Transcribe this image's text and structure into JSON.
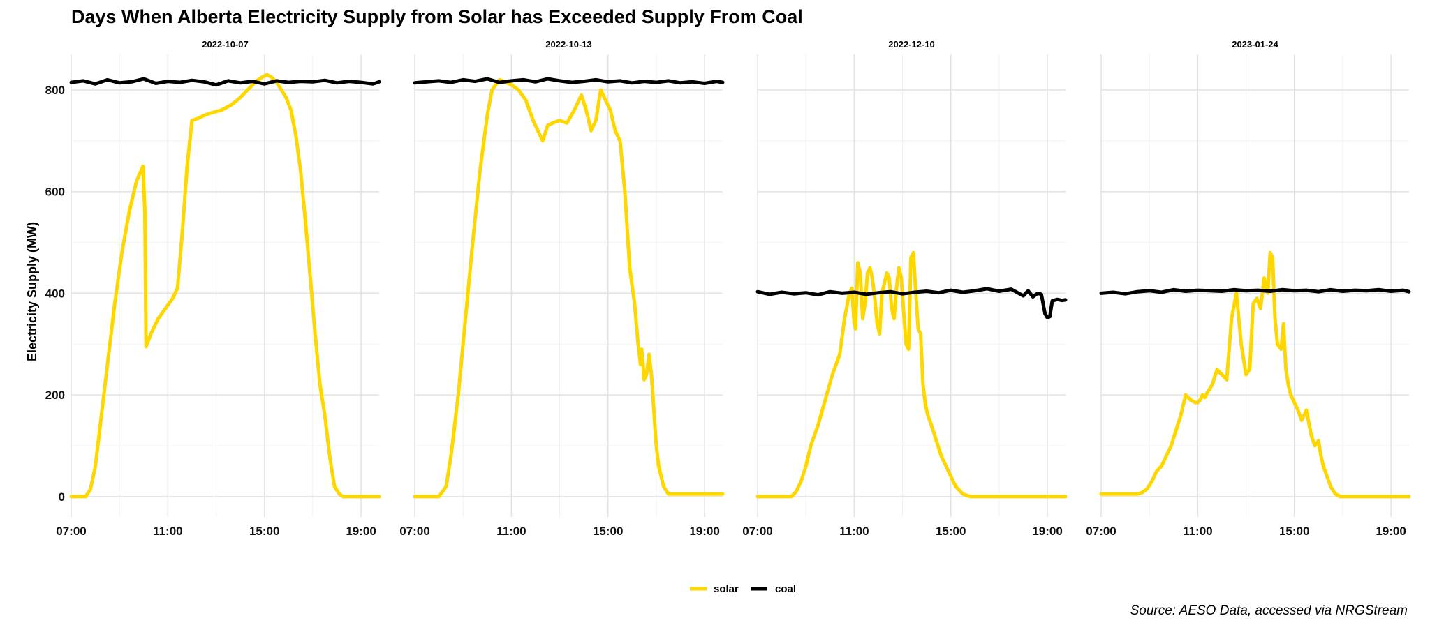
{
  "chart_data": {
    "type": "line",
    "title": "Days When Alberta Electricity Supply from Solar has Exceeded Supply From Coal",
    "ylabel": "Electricity Supply (MW)",
    "xlabel": "",
    "ylim": [
      -40,
      870
    ],
    "yticks": [
      0,
      200,
      400,
      600,
      800
    ],
    "xlim": [
      7,
      19.75
    ],
    "xticks": [
      7,
      11,
      15,
      19
    ],
    "xtick_labels": [
      "07:00",
      "11:00",
      "15:00",
      "19:00"
    ],
    "grid": true,
    "legend": {
      "position": "bottom",
      "entries": [
        {
          "name": "solar",
          "color": "#FFD700"
        },
        {
          "name": "coal",
          "color": "#000000"
        }
      ]
    },
    "caption": "Source: AESO Data, accessed via NRGStream",
    "panels": [
      {
        "label": "2022-10-07",
        "series": [
          {
            "name": "solar",
            "color": "#FFD700",
            "x": [
              7,
              7.6,
              7.8,
              8.0,
              8.2,
              8.5,
              8.8,
              9.1,
              9.4,
              9.7,
              9.97,
              10.05,
              10.1,
              10.3,
              10.6,
              10.9,
              11.2,
              11.4,
              11.6,
              11.8,
              12.0,
              12.3,
              12.5,
              12.8,
              13.2,
              13.6,
              14.0,
              14.3,
              14.6,
              14.9,
              15.1,
              15.3,
              15.5,
              15.7,
              15.9,
              16.1,
              16.3,
              16.5,
              16.7,
              16.9,
              17.1,
              17.3,
              17.5,
              17.7,
              17.9,
              18.1,
              18.25,
              18.4,
              18.6,
              19.75
            ],
            "y": [
              0,
              0,
              15,
              60,
              140,
              260,
              380,
              480,
              560,
              620,
              650,
              560,
              295,
              320,
              350,
              370,
              390,
              410,
              520,
              650,
              740,
              745,
              750,
              755,
              760,
              770,
              785,
              800,
              815,
              825,
              830,
              825,
              815,
              800,
              785,
              760,
              710,
              640,
              540,
              430,
              320,
              220,
              160,
              80,
              20,
              5,
              0,
              0,
              0,
              0
            ]
          },
          {
            "name": "coal",
            "color": "#000000",
            "x": [
              7,
              7.5,
              8,
              8.5,
              9,
              9.5,
              10,
              10.5,
              11,
              11.5,
              12,
              12.5,
              13,
              13.5,
              14,
              14.5,
              15,
              15.5,
              16,
              16.5,
              17,
              17.5,
              18,
              18.5,
              19,
              19.5,
              19.75
            ],
            "y": [
              815,
              818,
              812,
              820,
              814,
              816,
              822,
              813,
              817,
              815,
              819,
              816,
              810,
              818,
              814,
              817,
              812,
              818,
              815,
              817,
              816,
              819,
              814,
              817,
              815,
              812,
              816
            ]
          }
        ]
      },
      {
        "label": "2022-10-13",
        "series": [
          {
            "name": "solar",
            "color": "#FFD700",
            "x": [
              7,
              8.0,
              8.3,
              8.5,
              8.8,
              9.1,
              9.4,
              9.7,
              10.0,
              10.2,
              10.5,
              10.8,
              11.0,
              11.3,
              11.6,
              11.9,
              12.1,
              12.3,
              12.5,
              12.7,
              13.0,
              13.3,
              13.6,
              13.9,
              14.1,
              14.3,
              14.5,
              14.7,
              14.9,
              15.1,
              15.3,
              15.5,
              15.7,
              15.9,
              16.1,
              16.25,
              16.35,
              16.4,
              16.5,
              16.6,
              16.7,
              16.8,
              16.9,
              17.0,
              17.1,
              17.3,
              17.5,
              17.7,
              17.9,
              18.1,
              19.75
            ],
            "y": [
              0,
              0,
              20,
              80,
              200,
              350,
              500,
              640,
              750,
              800,
              820,
              815,
              810,
              800,
              780,
              740,
              720,
              700,
              730,
              735,
              740,
              735,
              760,
              790,
              760,
              720,
              740,
              800,
              780,
              760,
              720,
              700,
              600,
              450,
              380,
              300,
              260,
              290,
              230,
              240,
              280,
              240,
              170,
              100,
              60,
              20,
              5,
              5,
              5,
              5,
              5
            ]
          },
          {
            "name": "coal",
            "color": "#000000",
            "x": [
              7,
              7.5,
              8,
              8.5,
              9,
              9.5,
              10,
              10.5,
              11,
              11.5,
              12,
              12.5,
              13,
              13.5,
              14,
              14.5,
              15,
              15.5,
              16,
              16.5,
              17,
              17.5,
              18,
              18.5,
              19,
              19.5,
              19.75
            ],
            "y": [
              814,
              816,
              818,
              815,
              820,
              817,
              822,
              815,
              818,
              820,
              816,
              822,
              818,
              815,
              817,
              820,
              816,
              818,
              814,
              817,
              815,
              818,
              814,
              816,
              813,
              817,
              815
            ]
          }
        ]
      },
      {
        "label": "2022-12-10",
        "series": [
          {
            "name": "solar",
            "color": "#FFD700",
            "x": [
              7,
              8.4,
              8.6,
              8.8,
              9.0,
              9.2,
              9.5,
              9.8,
              10.1,
              10.4,
              10.6,
              10.8,
              10.9,
              11.0,
              11.05,
              11.15,
              11.25,
              11.35,
              11.45,
              11.55,
              11.65,
              11.75,
              11.85,
              11.95,
              12.05,
              12.15,
              12.25,
              12.35,
              12.45,
              12.55,
              12.65,
              12.75,
              12.85,
              12.95,
              13.05,
              13.15,
              13.25,
              13.35,
              13.45,
              13.55,
              13.65,
              13.75,
              13.85,
              13.95,
              14.05,
              14.2,
              14.4,
              14.6,
              14.8,
              15.0,
              15.2,
              15.5,
              15.8,
              16.1,
              19.75
            ],
            "y": [
              0,
              0,
              10,
              30,
              60,
              100,
              140,
              190,
              240,
              280,
              350,
              400,
              410,
              340,
              330,
              460,
              440,
              350,
              380,
              440,
              450,
              430,
              390,
              340,
              320,
              400,
              420,
              440,
              430,
              370,
              350,
              410,
              450,
              430,
              360,
              300,
              290,
              470,
              480,
              400,
              330,
              320,
              220,
              180,
              160,
              140,
              110,
              80,
              60,
              40,
              20,
              5,
              0,
              0,
              0
            ]
          },
          {
            "name": "coal",
            "color": "#000000",
            "x": [
              7,
              7.5,
              8,
              8.5,
              9,
              9.5,
              10,
              10.5,
              11,
              11.5,
              12,
              12.5,
              13,
              13.5,
              14,
              14.5,
              15,
              15.5,
              16,
              16.5,
              17,
              17.5,
              18,
              18.2,
              18.4,
              18.6,
              18.75,
              18.9,
              19.0,
              19.1,
              19.2,
              19.4,
              19.6,
              19.75
            ],
            "y": [
              403,
              398,
              402,
              399,
              401,
              397,
              403,
              400,
              402,
              398,
              401,
              403,
              399,
              402,
              404,
              401,
              406,
              402,
              405,
              409,
              404,
              408,
              395,
              405,
              393,
              400,
              398,
              360,
              352,
              354,
              385,
              388,
              386,
              387
            ]
          }
        ]
      },
      {
        "label": "2023-01-24",
        "series": [
          {
            "name": "solar",
            "color": "#FFD700",
            "x": [
              7,
              8.5,
              8.7,
              8.9,
              9.1,
              9.3,
              9.5,
              9.7,
              9.9,
              10.1,
              10.3,
              10.5,
              10.7,
              10.9,
              11.0,
              11.1,
              11.2,
              11.3,
              11.4,
              11.6,
              11.8,
              12.0,
              12.2,
              12.4,
              12.6,
              12.8,
              13.0,
              13.15,
              13.3,
              13.45,
              13.6,
              13.75,
              13.9,
              14.0,
              14.1,
              14.2,
              14.3,
              14.45,
              14.55,
              14.65,
              14.75,
              14.85,
              14.95,
              15.05,
              15.15,
              15.3,
              15.5,
              15.7,
              15.85,
              16.0,
              16.1,
              16.2,
              16.35,
              16.5,
              16.7,
              16.9,
              17.1,
              17.3,
              17.6,
              19.75
            ],
            "y": [
              5,
              5,
              8,
              15,
              30,
              50,
              60,
              80,
              100,
              130,
              160,
              200,
              190,
              185,
              185,
              190,
              200,
              195,
              205,
              220,
              250,
              240,
              230,
              350,
              400,
              300,
              240,
              250,
              380,
              390,
              370,
              430,
              400,
              480,
              470,
              350,
              300,
              290,
              340,
              250,
              220,
              200,
              190,
              180,
              170,
              150,
              170,
              120,
              100,
              110,
              80,
              60,
              40,
              20,
              5,
              0,
              0,
              0,
              0,
              0
            ]
          },
          {
            "name": "coal",
            "color": "#000000",
            "x": [
              7,
              7.5,
              8,
              8.5,
              9,
              9.5,
              10,
              10.5,
              11,
              11.5,
              12,
              12.5,
              13,
              13.5,
              14,
              14.5,
              15,
              15.5,
              16,
              16.5,
              17,
              17.5,
              18,
              18.5,
              19,
              19.5,
              19.75
            ],
            "y": [
              400,
              402,
              399,
              403,
              405,
              402,
              407,
              404,
              406,
              405,
              404,
              407,
              405,
              406,
              404,
              407,
              405,
              406,
              403,
              407,
              404,
              406,
              405,
              407,
              404,
              406,
              403
            ]
          }
        ]
      }
    ]
  }
}
